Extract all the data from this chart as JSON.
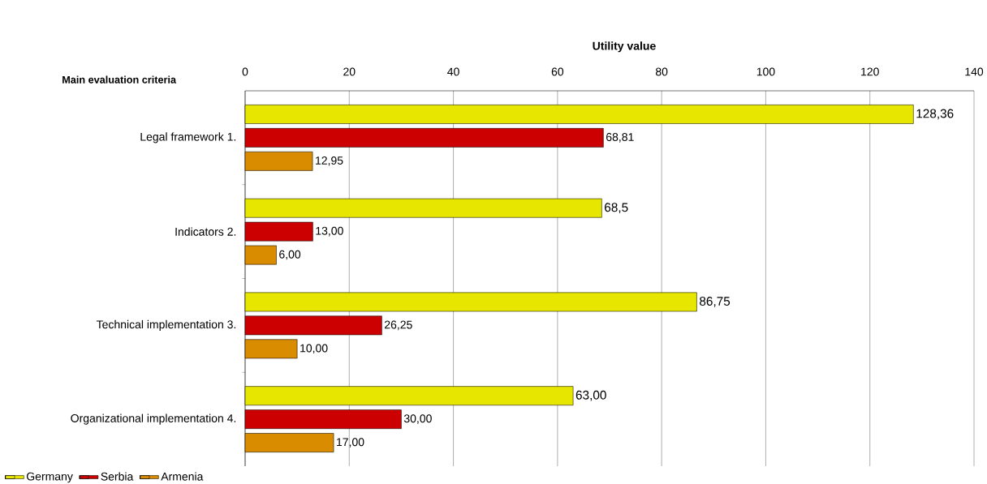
{
  "chart_data": {
    "type": "bar",
    "orientation": "horizontal",
    "xlabel": "Utility value",
    "ylabel": "Main evaluation criteria",
    "categories": [
      "Legal framework 1.",
      "Indicators 2.",
      "Technical implementation 3.",
      "Organizational implementation 4."
    ],
    "series": [
      {
        "name": "Germany",
        "color": "#e6e600",
        "values": [
          128.36,
          68.5,
          86.75,
          63.0
        ],
        "value_labels": [
          "128,36",
          "68,5",
          "86,75",
          "63,00"
        ]
      },
      {
        "name": "Serbia",
        "color": "#cc0000",
        "values": [
          68.81,
          13.0,
          26.25,
          30.0
        ],
        "value_labels": [
          "68,81",
          "13,00",
          "26,25",
          "30,00"
        ]
      },
      {
        "name": "Armenia",
        "color": "#d98c00",
        "values": [
          12.95,
          6.0,
          10.0,
          17.0
        ],
        "value_labels": [
          "12,95",
          "6,00",
          "10,00",
          "17,00"
        ]
      }
    ],
    "xlim": [
      0,
      140
    ],
    "xticks": [
      0,
      20,
      40,
      60,
      80,
      100,
      120,
      140
    ],
    "grid": "x",
    "legend": "bottom left"
  }
}
